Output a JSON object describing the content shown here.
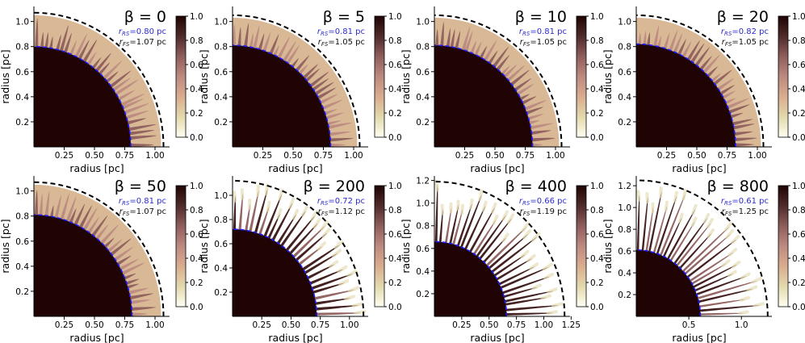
{
  "chart_data": [
    {
      "type": "heatmap",
      "beta": "0",
      "title": "β = 0",
      "rs_label": "r",
      "rs_sub": "RS",
      "rs_value": "=0.80 pc",
      "fs_label": "r",
      "fs_sub": "FS",
      "fs_value": "=1.07 pc",
      "rs": 0.8,
      "fs": 1.07,
      "xlabel": "radius [pc]",
      "ylabel": "radius [pc]",
      "xlim": [
        0,
        1.12
      ],
      "ylim": [
        0,
        1.12
      ],
      "xticks": [
        "0.25",
        "0.50",
        "0.75",
        "1.00"
      ],
      "yticks": [
        "0.2",
        "0.4",
        "0.6",
        "0.8",
        "1.0"
      ],
      "colorbar_ticks": [
        "0.0",
        "0.2",
        "0.4",
        "0.6",
        "0.8",
        "1.0"
      ],
      "clim": [
        0,
        1
      ]
    },
    {
      "type": "heatmap",
      "beta": "5",
      "title": "β = 5",
      "rs_label": "r",
      "rs_sub": "RS",
      "rs_value": "=0.81 pc",
      "fs_label": "r",
      "fs_sub": "FS",
      "fs_value": "=1.05 pc",
      "rs": 0.81,
      "fs": 1.05,
      "xlabel": "radius [pc]",
      "ylabel": "radius [pc]",
      "xlim": [
        0,
        1.12
      ],
      "ylim": [
        0,
        1.12
      ],
      "xticks": [
        "0.25",
        "0.50",
        "0.75",
        "1.00"
      ],
      "yticks": [
        "0.2",
        "0.4",
        "0.6",
        "0.8",
        "1.0"
      ],
      "colorbar_ticks": [
        "0.0",
        "0.2",
        "0.4",
        "0.6",
        "0.8",
        "1.0"
      ],
      "clim": [
        0,
        1
      ]
    },
    {
      "type": "heatmap",
      "beta": "10",
      "title": "β = 10",
      "rs_label": "r",
      "rs_sub": "RS",
      "rs_value": "=0.81 pc",
      "fs_label": "r",
      "fs_sub": "FS",
      "fs_value": "=1.05 pc",
      "rs": 0.81,
      "fs": 1.05,
      "xlabel": "radius [pc]",
      "ylabel": "radius [pc]",
      "xlim": [
        0,
        1.12
      ],
      "ylim": [
        0,
        1.12
      ],
      "xticks": [
        "0.25",
        "0.50",
        "0.75",
        "1.00"
      ],
      "yticks": [
        "0.2",
        "0.4",
        "0.6",
        "0.8",
        "1.0"
      ],
      "colorbar_ticks": [
        "0.0",
        "0.2",
        "0.4",
        "0.6",
        "0.8",
        "1.0"
      ],
      "clim": [
        0,
        1
      ]
    },
    {
      "type": "heatmap",
      "beta": "20",
      "title": "β = 20",
      "rs_label": "r",
      "rs_sub": "RS",
      "rs_value": "=0.82 pc",
      "fs_label": "r",
      "fs_sub": "FS",
      "fs_value": "=1.05 pc",
      "rs": 0.82,
      "fs": 1.05,
      "xlabel": "radius [pc]",
      "ylabel": "radius [pc]",
      "xlim": [
        0,
        1.12
      ],
      "ylim": [
        0,
        1.12
      ],
      "xticks": [
        "0.25",
        "0.50",
        "0.75",
        "1.00"
      ],
      "yticks": [
        "0.2",
        "0.4",
        "0.6",
        "0.8",
        "1.0"
      ],
      "colorbar_ticks": [
        "0.0",
        "0.2",
        "0.4",
        "0.6",
        "0.8",
        "1.0"
      ],
      "clim": [
        0,
        1
      ]
    },
    {
      "type": "heatmap",
      "beta": "50",
      "title": "β = 50",
      "rs_label": "r",
      "rs_sub": "RS",
      "rs_value": "=0.81 pc",
      "fs_label": "r",
      "fs_sub": "FS",
      "fs_value": "=1.07 pc",
      "rs": 0.81,
      "fs": 1.07,
      "xlabel": "radius [pc]",
      "ylabel": "radius [pc]",
      "xlim": [
        0,
        1.12
      ],
      "ylim": [
        0,
        1.12
      ],
      "xticks": [
        "0.25",
        "0.50",
        "0.75",
        "1.00"
      ],
      "yticks": [
        "0.2",
        "0.4",
        "0.6",
        "0.8",
        "1.0"
      ],
      "colorbar_ticks": [
        "0.0",
        "0.2",
        "0.4",
        "0.6",
        "0.8",
        "1.0"
      ],
      "clim": [
        0,
        1
      ]
    },
    {
      "type": "heatmap",
      "beta": "200",
      "title": "β = 200",
      "rs_label": "r",
      "rs_sub": "RS",
      "rs_value": "=0.72 pc",
      "fs_label": "r",
      "fs_sub": "FS",
      "fs_value": "=1.12 pc",
      "rs": 0.72,
      "fs": 1.12,
      "xlabel": "radius [pc]",
      "ylabel": "radius [pc]",
      "xlim": [
        0,
        1.16
      ],
      "ylim": [
        0,
        1.16
      ],
      "xticks": [
        "0.25",
        "0.50",
        "0.75",
        "1.00"
      ],
      "yticks": [
        "0.2",
        "0.4",
        "0.6",
        "0.8",
        "1.0"
      ],
      "colorbar_ticks": [
        "0.0",
        "0.2",
        "0.4",
        "0.6",
        "0.8",
        "1.0"
      ],
      "clim": [
        0,
        1
      ]
    },
    {
      "type": "heatmap",
      "beta": "400",
      "title": "β = 400",
      "rs_label": "r",
      "rs_sub": "RS",
      "rs_value": "=0.66 pc",
      "fs_label": "r",
      "fs_sub": "FS",
      "fs_value": "=1.19 pc",
      "rs": 0.66,
      "fs": 1.19,
      "xlabel": "radius [pc]",
      "ylabel": "radius [pc]",
      "xlim": [
        0,
        1.24
      ],
      "ylim": [
        0,
        1.24
      ],
      "xticks": [
        "0.25",
        "0.50",
        "0.75",
        "1.00",
        "1.25"
      ],
      "yticks": [
        "0.2",
        "0.4",
        "0.6",
        "0.8",
        "1.0",
        "1.2"
      ],
      "colorbar_ticks": [
        "0.0",
        "0.2",
        "0.4",
        "0.6",
        "0.8",
        "1.0"
      ],
      "clim": [
        0,
        1
      ]
    },
    {
      "type": "heatmap",
      "beta": "800",
      "title": "β = 800",
      "rs_label": "r",
      "rs_sub": "RS",
      "rs_value": "=0.61 pc",
      "fs_label": "r",
      "fs_sub": "FS",
      "fs_value": "=1.25 pc",
      "rs": 0.61,
      "fs": 1.25,
      "xlabel": "radius [pc]",
      "ylabel": "radius [pc]",
      "xlim": [
        0,
        1.29
      ],
      "ylim": [
        0,
        1.29
      ],
      "xticks": [
        "0.5",
        "1.0"
      ],
      "yticks": [
        "0.2",
        "0.4",
        "0.6",
        "0.8",
        "1.0",
        "1.2"
      ],
      "colorbar_ticks": [
        "0.0",
        "0.2",
        "0.4",
        "0.6",
        "0.8",
        "1.0"
      ],
      "clim": [
        0,
        1
      ]
    }
  ],
  "colors": {
    "rs_line": "#1a1aff",
    "fs_line": "#000000",
    "rs_text": "#2b2bd6",
    "dark": "#200404",
    "cmap": [
      "#fffff2",
      "#e2d9ad",
      "#d9ad8f",
      "#bd8a80",
      "#8e5e5c",
      "#4f2b2b",
      "#200404"
    ]
  }
}
